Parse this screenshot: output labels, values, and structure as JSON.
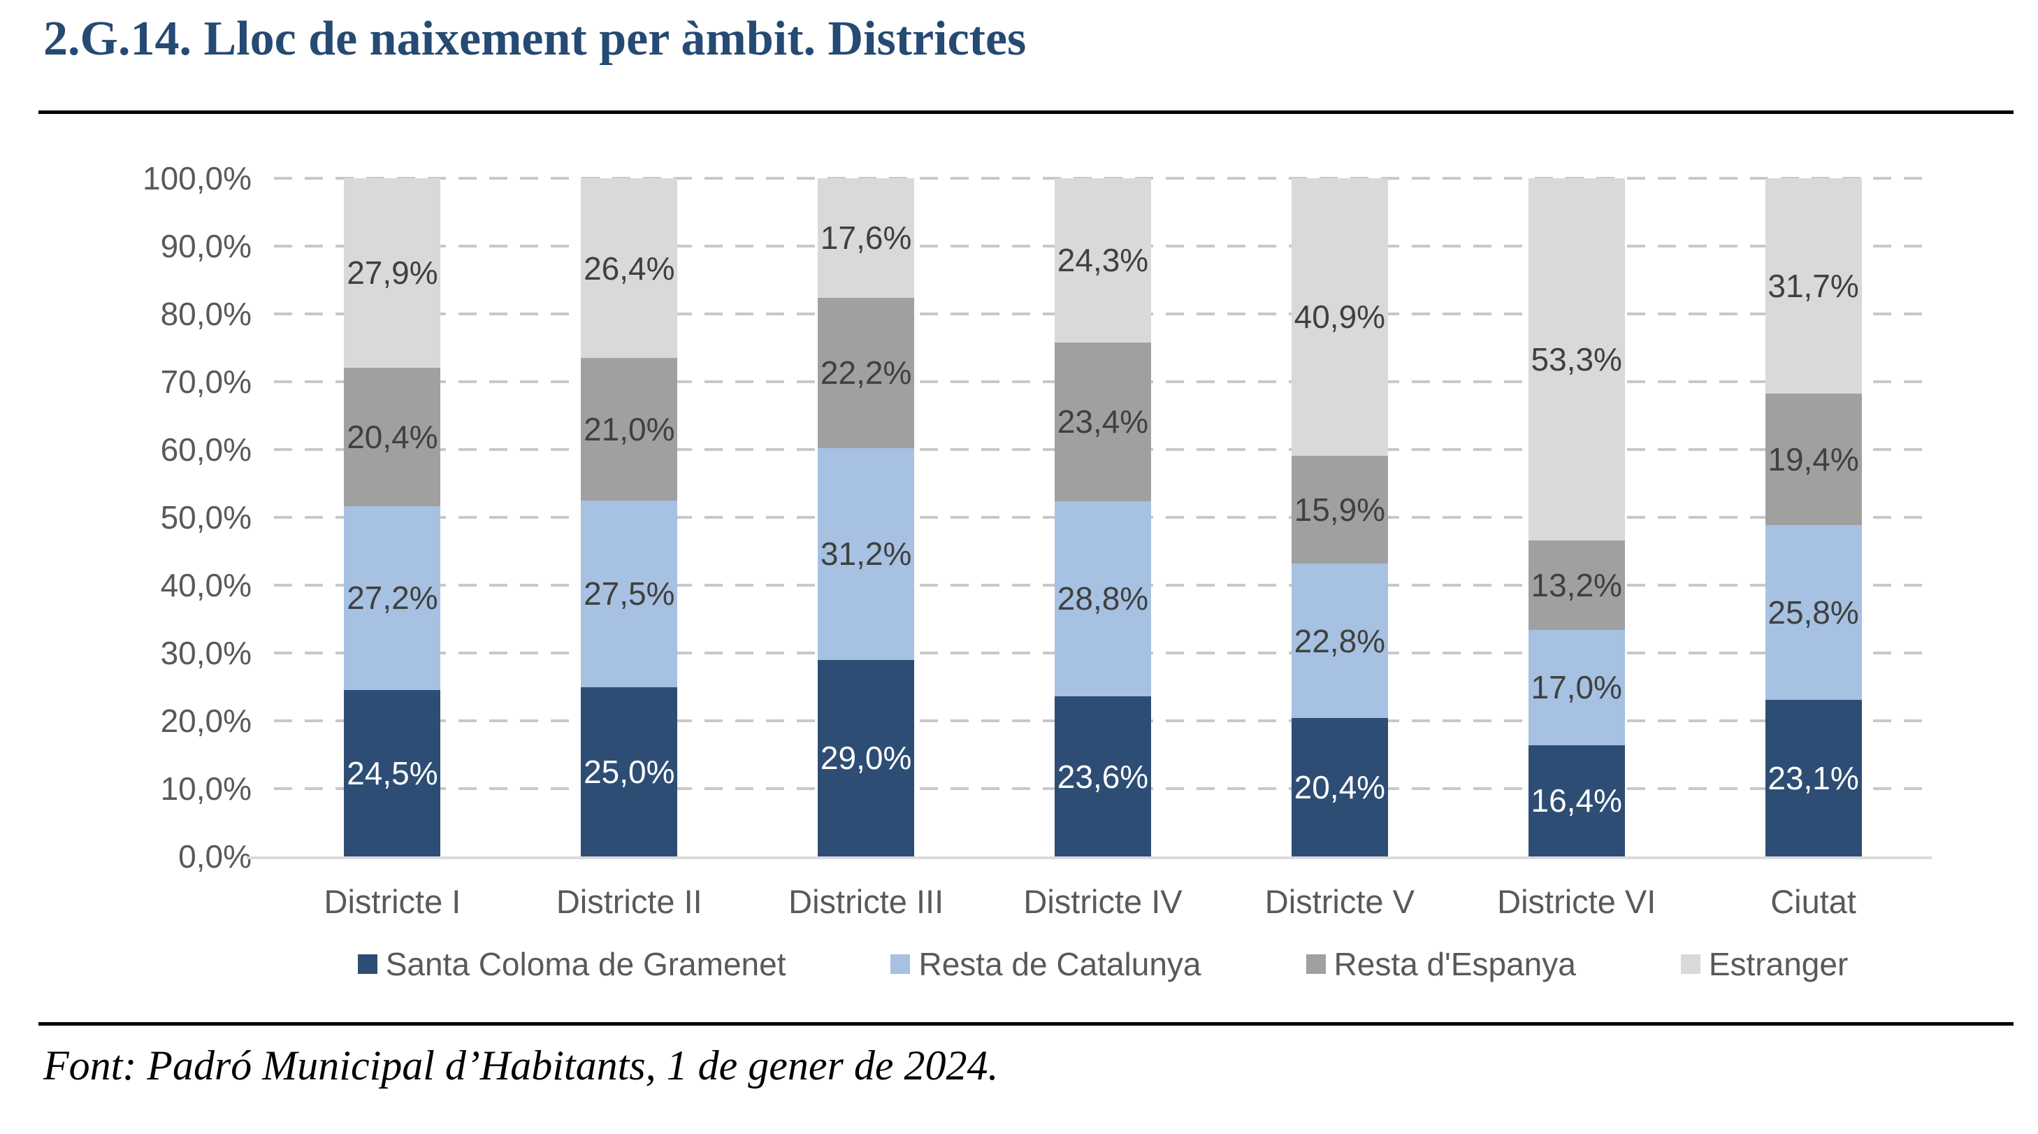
{
  "title": "2.G.14. Lloc de naixement per àmbit. Districtes",
  "footer": "Font: Padró Municipal d’Habitants, 1 de gener de 2024.",
  "colors": {
    "title_text": "#254A73",
    "axis_text": "#595959",
    "data_label_dark": "#404040",
    "data_label_light": "#FFFFFF",
    "gridline": "#C8C8C8",
    "baseline": "#DBDBDB",
    "rule": "#000000"
  },
  "chart_data": {
    "type": "bar",
    "stacked": true,
    "grid": "horizontal-dashed",
    "legend_position": "bottom",
    "ylim": [
      0,
      100
    ],
    "ytick_labels": [
      "100,0%",
      "90,0%",
      "80,0%",
      "70,0%",
      "60,0%",
      "50,0%",
      "40,0%",
      "30,0%",
      "20,0%",
      "10,0%",
      "0,0%"
    ],
    "categories": [
      "Districte I",
      "Districte II",
      "Districte III",
      "Districte IV",
      "Districte V",
      "Districte VI",
      "Ciutat"
    ],
    "series": [
      {
        "name": "Santa Coloma de Gramenet",
        "color": "#2E4D74",
        "label_color": "#FFFFFF",
        "values": [
          24.5,
          25.0,
          29.0,
          23.6,
          20.4,
          16.4,
          23.1
        ],
        "labels": [
          "24,5%",
          "25,0%",
          "29,0%",
          "23,6%",
          "20,4%",
          "16,4%",
          "23,1%"
        ]
      },
      {
        "name": "Resta de Catalunya",
        "color": "#A6C1E1",
        "label_color": "#404040",
        "values": [
          27.2,
          27.5,
          31.2,
          28.8,
          22.8,
          17.0,
          25.8
        ],
        "labels": [
          "27,2%",
          "27,5%",
          "31,2%",
          "28,8%",
          "22,8%",
          "17,0%",
          "25,8%"
        ]
      },
      {
        "name": "Resta d'Espanya",
        "color": "#A0A0A0",
        "label_color": "#404040",
        "values": [
          20.4,
          21.0,
          22.2,
          23.4,
          15.9,
          13.2,
          19.4
        ],
        "labels": [
          "20,4%",
          "21,0%",
          "22,2%",
          "23,4%",
          "15,9%",
          "13,2%",
          "19,4%"
        ]
      },
      {
        "name": "Estranger",
        "color": "#D9D9D9",
        "label_color": "#404040",
        "values": [
          27.9,
          26.4,
          17.6,
          24.3,
          40.9,
          53.3,
          31.7
        ],
        "labels": [
          "27,9%",
          "26,4%",
          "17,6%",
          "24,3%",
          "40,9%",
          "53,3%",
          "31,7%"
        ]
      }
    ]
  }
}
